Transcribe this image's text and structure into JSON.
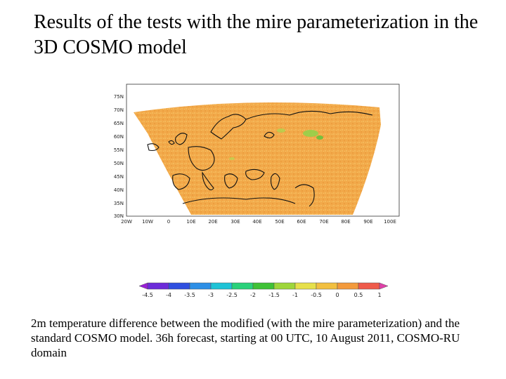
{
  "title": "Results of the tests with the mire parameterization in the 3D COSMO model",
  "map": {
    "lat_labels": [
      "75N",
      "70N",
      "65N",
      "60N",
      "55N",
      "50N",
      "45N",
      "40N",
      "35N",
      "30N"
    ],
    "lon_labels": [
      "20W",
      "10W",
      "0",
      "10E",
      "20E",
      "30E",
      "40E",
      "50E",
      "60E",
      "70E",
      "80E",
      "90E",
      "100E"
    ],
    "field_color": "#f2a94a"
  },
  "colorbar": {
    "labels": [
      "-4.5",
      "-4",
      "-3.5",
      "-3",
      "-2.5",
      "-2",
      "-1.5",
      "-1",
      "-0.5",
      "0",
      "0.5",
      "1"
    ],
    "colors": [
      "#9b1ed8",
      "#6c2bd9",
      "#2f4fe0",
      "#2d8fe6",
      "#1ec3d6",
      "#2ad17a",
      "#3fc236",
      "#9ed63a",
      "#e6e04a",
      "#f2c040",
      "#f39a3c",
      "#ef5a4a",
      "#e040a8"
    ]
  },
  "caption": "2m temperature difference between the modified (with the mire parameterization) and the standard COSMO model. 36h forecast, starting at 00 UTC, 10 August 2011, COSMO-RU domain"
}
